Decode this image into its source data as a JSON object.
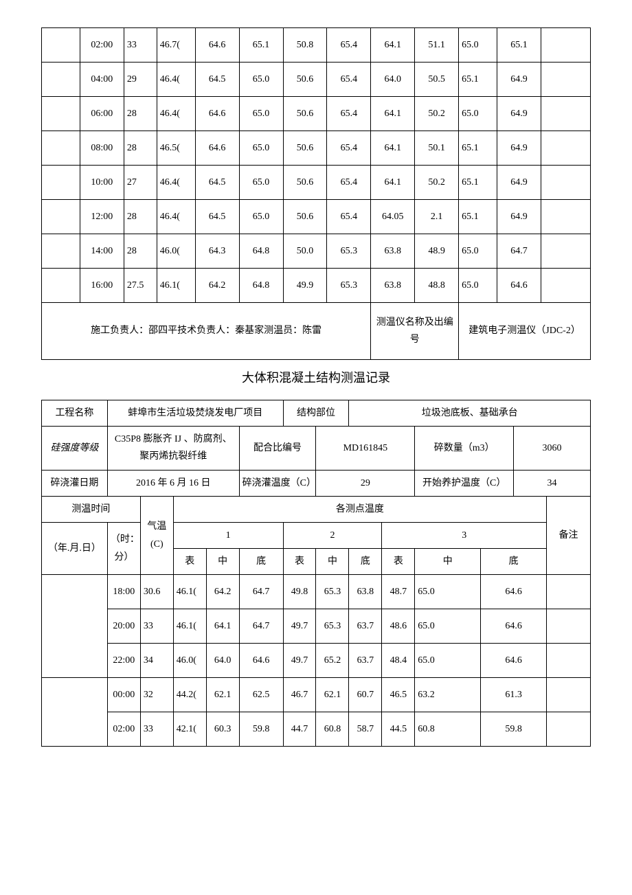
{
  "table1": {
    "rows": [
      {
        "time": "02:00",
        "temp": "33",
        "v1": "46.7(",
        "v2": "64.6",
        "v3": "65.1",
        "v4": "50.8",
        "v5": "65.4",
        "v6": "64.1",
        "v7": "51.1",
        "v8": "65.0",
        "v9": "65.1"
      },
      {
        "time": "04:00",
        "temp": "29",
        "v1": "46.4(",
        "v2": "64.5",
        "v3": "65.0",
        "v4": "50.6",
        "v5": "65.4",
        "v6": "64.0",
        "v7": "50.5",
        "v8": "65.1",
        "v9": "64.9"
      },
      {
        "time": "06:00",
        "temp": "28",
        "v1": "46.4(",
        "v2": "64.6",
        "v3": "65.0",
        "v4": "50.6",
        "v5": "65.4",
        "v6": "64.1",
        "v7": "50.2",
        "v8": "65.0",
        "v9": "64.9"
      },
      {
        "time": "08:00",
        "temp": "28",
        "v1": "46.5(",
        "v2": "64.6",
        "v3": "65.0",
        "v4": "50.6",
        "v5": "65.4",
        "v6": "64.1",
        "v7": "50.1",
        "v8": "65.1",
        "v9": "64.9"
      },
      {
        "time": "10:00",
        "temp": "27",
        "v1": "46.4(",
        "v2": "64.5",
        "v3": "65.0",
        "v4": "50.6",
        "v5": "65.4",
        "v6": "64.1",
        "v7": "50.2",
        "v8": "65.1",
        "v9": "64.9"
      },
      {
        "time": "12:00",
        "temp": "28",
        "v1": "46.4(",
        "v2": "64.5",
        "v3": "65.0",
        "v4": "50.6",
        "v5": "65.4",
        "v6": "64.05",
        "v7": "2.1",
        "v8": "65.1",
        "v9": "64.9"
      },
      {
        "time": "14:00",
        "temp": "28",
        "v1": "46.0(",
        "v2": "64.3",
        "v3": "64.8",
        "v4": "50.0",
        "v5": "65.3",
        "v6": "63.8",
        "v7": "48.9",
        "v8": "65.0",
        "v9": "64.7"
      },
      {
        "time": "16:00",
        "temp": "27.5",
        "v1": "46.1(",
        "v2": "64.2",
        "v3": "64.8",
        "v4": "49.9",
        "v5": "65.3",
        "v6": "63.8",
        "v7": "48.8",
        "v8": "65.0",
        "v9": "64.6"
      }
    ],
    "footer": {
      "people": "施工负责人：邵四平技术负责人：秦基家测温员：陈雷",
      "device_label": "测温仪名称及出编号",
      "device_value": "建筑电子测温仪（JDC-2）"
    }
  },
  "doc_title": "大体积混凝土结构测温记录",
  "meta": {
    "project_label": "工程名称",
    "project_value": "蚌埠市生活垃圾焚烧发电厂项目",
    "part_label": "结构部位",
    "part_value": "垃圾池底板、基础承台",
    "strength_label": "硅强度等级",
    "strength_value": "C35P8 膨胀齐 IJ 、防腐剂、聚丙烯抗裂纤维",
    "mix_label": "配合比编号",
    "mix_value": "MD161845",
    "qty_label": "碎数量（m3）",
    "qty_value": "3060",
    "pour_date_label": "碎浇灌日期",
    "pour_date_value": "2016 年 6 月 16 日",
    "pour_temp_label": "碎浇灌温度（C）",
    "pour_temp_value": "29",
    "cure_temp_label": "开始养护温度（C）",
    "cure_temp_value": "34"
  },
  "header2": {
    "time_label": "测温时间",
    "air_label": "气温(C)",
    "points_label": "各测点温度",
    "p1": "1",
    "p2": "2",
    "p3": "3",
    "date_label": "（年.月.日）",
    "hm_label": "（时：分）",
    "surface": "表",
    "middle": "中",
    "bottom": "底",
    "remark": "备注"
  },
  "table2": {
    "rows": [
      {
        "time": "18:00",
        "temp": "30.6",
        "v1": "46.1(",
        "v2": "64.2",
        "v3": "64.7",
        "v4": "49.8",
        "v5": "65.3",
        "v6": "63.8",
        "v7": "48.7",
        "v8": "65.0",
        "v9": "64.6"
      },
      {
        "time": "20:00",
        "temp": "33",
        "v1": "46.1(",
        "v2": "64.1",
        "v3": "64.7",
        "v4": "49.7",
        "v5": "65.3",
        "v6": "63.7",
        "v7": "48.6",
        "v8": "65.0",
        "v9": "64.6"
      },
      {
        "time": "22:00",
        "temp": "34",
        "v1": "46.0(",
        "v2": "64.0",
        "v3": "64.6",
        "v4": "49.7",
        "v5": "65.2",
        "v6": "63.7",
        "v7": "48.4",
        "v8": "65.0",
        "v9": "64.6"
      },
      {
        "time": "00:00",
        "temp": "32",
        "v1": "44.2(",
        "v2": "62.1",
        "v3": "62.5",
        "v4": "46.7",
        "v5": "62.1",
        "v6": "60.7",
        "v7": "46.5",
        "v8": "63.2",
        "v9": "61.3"
      },
      {
        "time": "02:00",
        "temp": "33",
        "v1": "42.1(",
        "v2": "60.3",
        "v3": "59.8",
        "v4": "44.7",
        "v5": "60.8",
        "v6": "58.7",
        "v7": "44.5",
        "v8": "60.8",
        "v9": "59.8"
      }
    ]
  },
  "colors": {
    "border": "#000000",
    "background": "#ffffff",
    "text": "#000000"
  }
}
